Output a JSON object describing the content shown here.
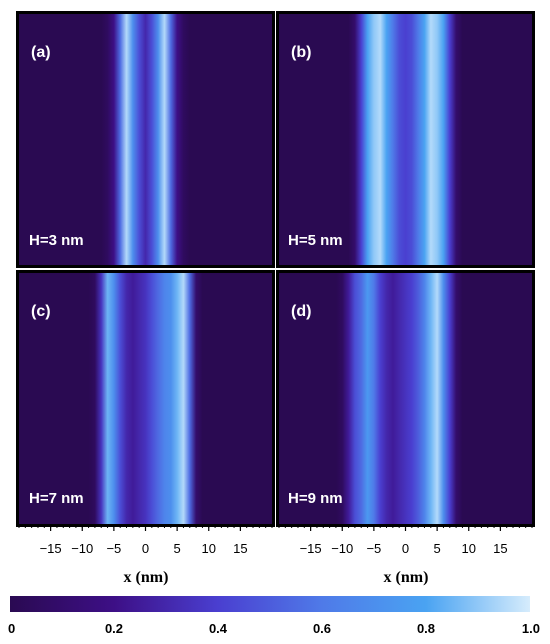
{
  "chart_data": {
    "type": "heatmap",
    "colormap": {
      "stops": [
        {
          "value": 0.0,
          "color": "#2a0a52"
        },
        {
          "value": 0.2,
          "color": "#3d0f86"
        },
        {
          "value": 0.4,
          "color": "#4a3fd0"
        },
        {
          "value": 0.6,
          "color": "#4f7ae8"
        },
        {
          "value": 0.8,
          "color": "#4aa3f2"
        },
        {
          "value": 1.0,
          "color": "#d6ecfc"
        }
      ],
      "ticks": [
        {
          "value": 0.0,
          "label": "0"
        },
        {
          "value": 0.2,
          "label": "0.2"
        },
        {
          "value": 0.4,
          "label": "0.4"
        },
        {
          "value": 0.6,
          "label": "0.6"
        },
        {
          "value": 0.8,
          "label": "0.8"
        },
        {
          "value": 1.0,
          "label": "1.0"
        }
      ]
    },
    "xaxis": {
      "label": "x (nm)",
      "range": [
        -20,
        20
      ],
      "ticks": [
        {
          "value": -15,
          "label": "−15"
        },
        {
          "value": -10,
          "label": "−10"
        },
        {
          "value": -5,
          "label": "−5"
        },
        {
          "value": 0,
          "label": "0"
        },
        {
          "value": 5,
          "label": "5"
        },
        {
          "value": 10,
          "label": "10"
        },
        {
          "value": 15,
          "label": "15"
        }
      ]
    },
    "panels": [
      {
        "tag": "(a)",
        "label": "H=3 nm",
        "x": [
          -20,
          -7,
          -6,
          -5,
          -4,
          -3,
          -2,
          -1,
          0,
          1,
          2,
          3,
          4,
          5,
          6,
          7,
          20
        ],
        "intensity": [
          0,
          0,
          0.05,
          0.2,
          0.55,
          0.95,
          0.7,
          0.45,
          0.3,
          0.45,
          0.7,
          0.95,
          0.55,
          0.2,
          0.05,
          0,
          0
        ]
      },
      {
        "tag": "(b)",
        "label": "H=5 nm",
        "x": [
          -20,
          -9,
          -8,
          -7,
          -6,
          -5,
          -4,
          -3,
          -2,
          -1,
          0,
          1,
          2,
          3,
          4,
          5,
          6,
          7,
          8,
          9,
          20
        ],
        "intensity": [
          0,
          0,
          0.1,
          0.4,
          0.8,
          0.9,
          0.95,
          0.8,
          0.6,
          0.45,
          0.4,
          0.45,
          0.6,
          0.8,
          0.95,
          0.9,
          0.8,
          0.4,
          0.1,
          0,
          0
        ]
      },
      {
        "tag": "(c)",
        "label": "H=7 nm",
        "x": [
          -20,
          -9,
          -8,
          -7,
          -6,
          -5,
          -4,
          -3,
          -2,
          -1,
          0,
          1,
          2,
          3,
          4,
          5,
          6,
          7,
          8,
          9,
          20
        ],
        "intensity": [
          0,
          0,
          0.05,
          0.35,
          0.85,
          0.7,
          0.45,
          0.3,
          0.25,
          0.3,
          0.35,
          0.45,
          0.55,
          0.65,
          0.7,
          0.85,
          0.95,
          0.55,
          0.1,
          0,
          0
        ]
      },
      {
        "tag": "(d)",
        "label": "H=9 nm",
        "x": [
          -20,
          -11,
          -10,
          -9,
          -8,
          -7,
          -6,
          -5,
          -4,
          -3,
          -2,
          -1,
          0,
          1,
          2,
          3,
          4,
          5,
          6,
          7,
          8,
          9,
          20
        ],
        "intensity": [
          0,
          0,
          0.05,
          0.25,
          0.45,
          0.55,
          0.75,
          0.6,
          0.4,
          0.3,
          0.25,
          0.3,
          0.35,
          0.4,
          0.5,
          0.65,
          0.85,
          0.95,
          0.7,
          0.4,
          0.1,
          0,
          0
        ]
      }
    ]
  }
}
